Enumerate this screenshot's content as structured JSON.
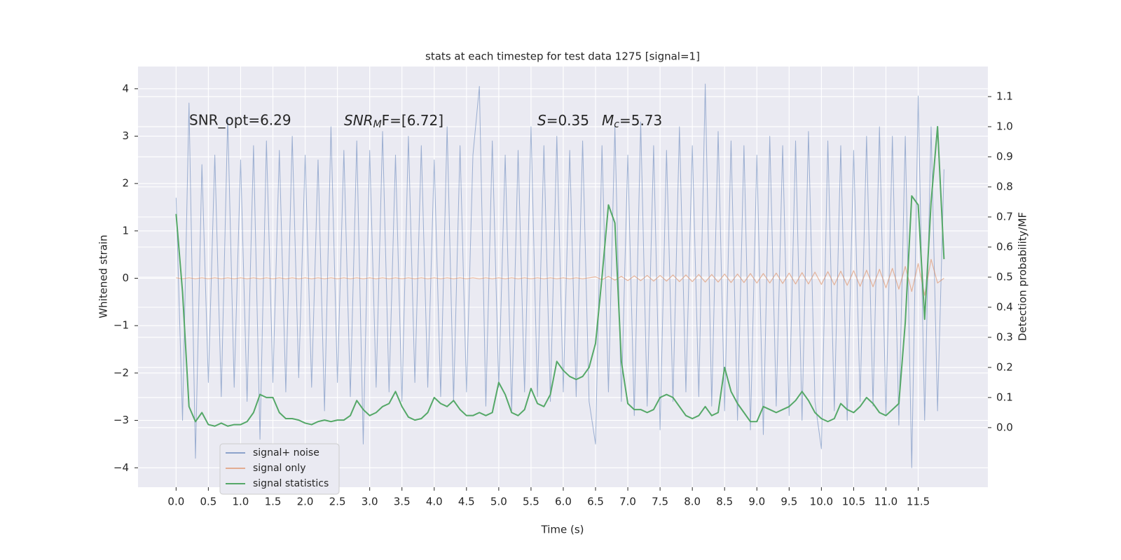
{
  "chart_data": {
    "type": "line",
    "title": "stats at each timestep for test data 1275 [signal=1]",
    "xlabel": "Time (s)",
    "ylabel": "Whitened strain",
    "y2label": "Detection probability/MF",
    "annotations": [
      "SNR_opt=6.29",
      [
        "SNR",
        "M",
        "F=[6.72]"
      ],
      [
        "S",
        "=0.35",
        "M",
        "c",
        "=5.73"
      ]
    ],
    "grid": true,
    "legend": "lower left",
    "xlim": [
      -0.59,
      12.58
    ],
    "ylim": [
      -4.41,
      4.47
    ],
    "y2lim": [
      -0.198,
      1.2
    ],
    "xticks": [
      {
        "value": 0,
        "label": "0.0"
      },
      {
        "value": 0.5,
        "label": "0.5"
      },
      {
        "value": 1,
        "label": "1.0"
      },
      {
        "value": 1.5,
        "label": "1.5"
      },
      {
        "value": 2,
        "label": "2.0"
      },
      {
        "value": 2.5,
        "label": "2.5"
      },
      {
        "value": 3,
        "label": "3.0"
      },
      {
        "value": 3.5,
        "label": "3.5"
      },
      {
        "value": 4,
        "label": "4.0"
      },
      {
        "value": 4.5,
        "label": "4.5"
      },
      {
        "value": 5,
        "label": "5.0"
      },
      {
        "value": 5.5,
        "label": "5.5"
      },
      {
        "value": 6,
        "label": "6.0"
      },
      {
        "value": 6.5,
        "label": "6.5"
      },
      {
        "value": 7,
        "label": "7.0"
      },
      {
        "value": 7.5,
        "label": "7.5"
      },
      {
        "value": 8,
        "label": "8.0"
      },
      {
        "value": 8.5,
        "label": "8.5"
      },
      {
        "value": 9,
        "label": "9.0"
      },
      {
        "value": 9.5,
        "label": "9.5"
      },
      {
        "value": 10,
        "label": "10.0"
      },
      {
        "value": 10.5,
        "label": "10.5"
      },
      {
        "value": 11,
        "label": "11.0"
      },
      {
        "value": 11.5,
        "label": "11.5"
      }
    ],
    "yticks": [
      4,
      3,
      2,
      1,
      0,
      {
        "value": -1,
        "label": "−1"
      },
      {
        "value": -2,
        "label": "−2"
      },
      {
        "value": -3,
        "label": "−3"
      },
      {
        "value": -4,
        "label": "−4"
      }
    ],
    "y2ticks": [
      {
        "value": 0,
        "label": "0.0"
      },
      {
        "value": 0.1,
        "label": "0.1"
      },
      {
        "value": 0.2,
        "label": "0.2"
      },
      {
        "value": 0.3,
        "label": "0.3"
      },
      {
        "value": 0.4,
        "label": "0.4"
      },
      {
        "value": 0.5,
        "label": "0.5"
      },
      {
        "value": 0.6,
        "label": "0.6"
      },
      {
        "value": 0.7,
        "label": "0.7"
      },
      {
        "value": 0.8,
        "label": "0.8"
      },
      {
        "value": 0.9,
        "label": "0.9"
      },
      {
        "value": 1,
        "label": "1.0"
      },
      {
        "value": 1.1,
        "label": "1.1"
      }
    ],
    "x": [
      0,
      0.1,
      0.2,
      0.3,
      0.4,
      0.5,
      0.6,
      0.7,
      0.8,
      0.9,
      1,
      1.1,
      1.2,
      1.3,
      1.4,
      1.5,
      1.6,
      1.7,
      1.8,
      1.9,
      2,
      2.1,
      2.2,
      2.3,
      2.4,
      2.5,
      2.6,
      2.7,
      2.8,
      2.9,
      3,
      3.1,
      3.2,
      3.3,
      3.4,
      3.5,
      3.6,
      3.7,
      3.8,
      3.9,
      4,
      4.1,
      4.2,
      4.3,
      4.4,
      4.5,
      4.6,
      4.7,
      4.8,
      4.9,
      5,
      5.1,
      5.2,
      5.3,
      5.4,
      5.5,
      5.6,
      5.7,
      5.8,
      5.9,
      6,
      6.1,
      6.2,
      6.3,
      6.4,
      6.5,
      6.6,
      6.7,
      6.8,
      6.9,
      7,
      7.1,
      7.2,
      7.3,
      7.4,
      7.5,
      7.6,
      7.7,
      7.8,
      7.9,
      8,
      8.1,
      8.2,
      8.3,
      8.4,
      8.5,
      8.6,
      8.7,
      8.8,
      8.9,
      9,
      9.1,
      9.2,
      9.3,
      9.4,
      9.5,
      9.6,
      9.7,
      9.8,
      9.9,
      10,
      10.1,
      10.2,
      10.3,
      10.4,
      10.5,
      10.6,
      10.7,
      10.8,
      10.9,
      11,
      11.1,
      11.2,
      11.3,
      11.4,
      11.5,
      11.6,
      11.7,
      11.8,
      11.9
    ],
    "series": [
      {
        "name": "signal+ noise",
        "color": "#4c72b0",
        "values": [
          1.7,
          -3.0,
          3.7,
          -3.8,
          2.4,
          -2.2,
          2.6,
          -2.5,
          3.4,
          -2.3,
          2.5,
          -2.6,
          2.8,
          -3.4,
          2.9,
          -2.2,
          2.7,
          -2.4,
          3.0,
          -2.1,
          2.6,
          -2.3,
          2.5,
          -2.8,
          3.2,
          -2.2,
          2.7,
          -2.5,
          2.9,
          -3.5,
          2.7,
          -2.3,
          3.1,
          -2.4,
          2.6,
          -2.6,
          3.0,
          -2.2,
          2.8,
          -2.3,
          2.5,
          -2.5,
          3.2,
          -2.6,
          2.8,
          -2.4,
          2.6,
          4.05,
          -2.7,
          2.9,
          -2.3,
          2.6,
          -2.8,
          2.7,
          -2.4,
          3.2,
          -2.5,
          2.8,
          -2.6,
          3.0,
          -2.4,
          2.7,
          -2.5,
          2.9,
          -2.6,
          -3.5,
          2.8,
          -2.4,
          3.2,
          -2.6,
          2.6,
          -2.9,
          3.3,
          -2.7,
          2.8,
          -3.2,
          2.7,
          -2.6,
          3.2,
          -2.4,
          2.8,
          -2.5,
          4.1,
          -2.7,
          3.1,
          -2.8,
          2.9,
          -3.0,
          2.8,
          -3.2,
          2.6,
          -3.3,
          3.0,
          -2.7,
          2.8,
          -2.9,
          2.9,
          -3.0,
          3.1,
          -2.6,
          -3.6,
          2.9,
          -2.8,
          2.8,
          -3.0,
          2.7,
          -2.6,
          3.0,
          -2.7,
          3.2,
          -2.9,
          3.0,
          -3.1,
          3.0,
          -4.0,
          3.85,
          -3.0,
          3.2,
          -2.8,
          2.3
        ]
      },
      {
        "name": "signal only",
        "color": "#dd8452",
        "values": [
          0.01,
          -0.01,
          0.01,
          -0.01,
          0.01,
          -0.01,
          0.01,
          -0.01,
          0.01,
          -0.01,
          0.01,
          -0.01,
          0.01,
          -0.01,
          0.01,
          -0.01,
          0.01,
          -0.01,
          0.01,
          -0.01,
          0.01,
          -0.01,
          0.01,
          -0.01,
          0.01,
          -0.01,
          0.01,
          -0.01,
          0.01,
          -0.01,
          0.01,
          -0.01,
          0.01,
          -0.01,
          0.01,
          -0.01,
          0.01,
          -0.01,
          0.01,
          -0.01,
          0.01,
          -0.01,
          0.01,
          -0.01,
          0.01,
          -0.01,
          0.01,
          -0.01,
          0.01,
          -0.01,
          0.01,
          -0.01,
          0.01,
          -0.01,
          0.01,
          -0.01,
          0.01,
          -0.01,
          0.01,
          -0.01,
          0.01,
          -0.01,
          0.01,
          -0.01,
          0.01,
          0.03,
          -0.03,
          0.04,
          -0.04,
          0.04,
          -0.05,
          0.05,
          -0.05,
          0.06,
          -0.06,
          0.06,
          -0.06,
          0.07,
          -0.07,
          0.07,
          -0.07,
          0.08,
          -0.08,
          0.08,
          -0.08,
          0.09,
          -0.09,
          0.09,
          -0.09,
          0.1,
          -0.1,
          0.1,
          -0.1,
          0.11,
          -0.11,
          0.11,
          -0.12,
          0.12,
          -0.12,
          0.13,
          -0.13,
          0.14,
          -0.14,
          0.15,
          -0.15,
          0.16,
          -0.17,
          0.17,
          -0.18,
          0.19,
          -0.2,
          0.21,
          -0.23,
          0.25,
          -0.28,
          0.31,
          -0.36,
          0.4,
          -0.1,
          0.0
        ]
      },
      {
        "name": "signal statistics",
        "color": "#55a868",
        "axis": "y2",
        "values": [
          0.71,
          0.45,
          0.07,
          0.02,
          0.05,
          0.01,
          0.005,
          0.015,
          0.005,
          0.01,
          0.01,
          0.02,
          0.05,
          0.11,
          0.1,
          0.1,
          0.05,
          0.03,
          0.03,
          0.025,
          0.015,
          0.01,
          0.02,
          0.025,
          0.02,
          0.025,
          0.025,
          0.04,
          0.09,
          0.06,
          0.04,
          0.05,
          0.07,
          0.08,
          0.12,
          0.07,
          0.035,
          0.025,
          0.03,
          0.05,
          0.1,
          0.08,
          0.07,
          0.09,
          0.06,
          0.04,
          0.04,
          0.05,
          0.04,
          0.05,
          0.15,
          0.11,
          0.05,
          0.04,
          0.06,
          0.13,
          0.08,
          0.07,
          0.11,
          0.22,
          0.19,
          0.17,
          0.16,
          0.17,
          0.2,
          0.28,
          0.5,
          0.74,
          0.68,
          0.22,
          0.08,
          0.06,
          0.06,
          0.05,
          0.06,
          0.1,
          0.11,
          0.1,
          0.07,
          0.04,
          0.03,
          0.04,
          0.07,
          0.04,
          0.05,
          0.2,
          0.12,
          0.08,
          0.05,
          0.02,
          0.02,
          0.07,
          0.06,
          0.05,
          0.06,
          0.07,
          0.09,
          0.12,
          0.09,
          0.05,
          0.03,
          0.02,
          0.03,
          0.08,
          0.06,
          0.05,
          0.07,
          0.1,
          0.08,
          0.05,
          0.04,
          0.06,
          0.08,
          0.35,
          0.77,
          0.74,
          0.36,
          0.75,
          1.0,
          0.56
        ]
      }
    ]
  }
}
